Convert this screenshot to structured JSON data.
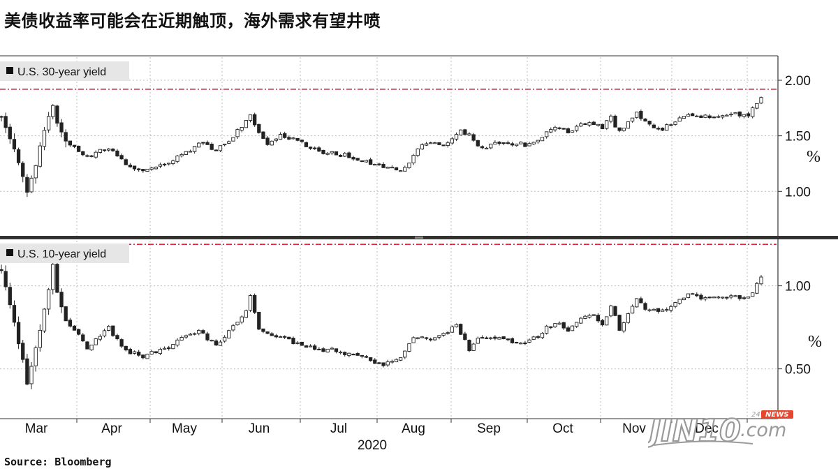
{
  "title": "美债收益率可能会在近期触顶，海外需求有望井喷",
  "source": "Source:  Bloomberg",
  "watermark": {
    "brand": "JIN10",
    "suffix": ".com",
    "badge_num": "24",
    "badge_text": "NEWS",
    "badge_color": "#e8452d"
  },
  "colors": {
    "candle": "#222222",
    "threshold": "#d6243f",
    "grid": "#bdbdbd",
    "label_bg": "#e6e6e6",
    "divider": "#333333"
  },
  "chart_data": [
    {
      "type": "candlestick",
      "label": "U.S. 30-year yield",
      "unit": "%",
      "yticks": [
        "2.00",
        "1.50",
        "1.00"
      ],
      "ytick_values": [
        2.0,
        1.5,
        1.0
      ],
      "ylim": [
        0.6,
        2.22
      ],
      "threshold": 1.92,
      "anchors": [
        [
          0,
          1.68
        ],
        [
          5,
          1.15
        ],
        [
          6,
          0.98
        ],
        [
          8,
          1.25
        ],
        [
          10,
          1.55
        ],
        [
          12,
          1.78
        ],
        [
          13,
          1.62
        ],
        [
          15,
          1.45
        ],
        [
          20,
          1.3
        ],
        [
          25,
          1.4
        ],
        [
          29,
          1.24
        ],
        [
          33,
          1.18
        ],
        [
          38,
          1.23
        ],
        [
          42,
          1.33
        ],
        [
          46,
          1.43
        ],
        [
          50,
          1.38
        ],
        [
          53,
          1.46
        ],
        [
          57,
          1.62
        ],
        [
          58,
          1.7
        ],
        [
          60,
          1.52
        ],
        [
          62,
          1.42
        ],
        [
          65,
          1.52
        ],
        [
          69,
          1.45
        ],
        [
          73,
          1.37
        ],
        [
          78,
          1.34
        ],
        [
          83,
          1.3
        ],
        [
          88,
          1.22
        ],
        [
          93,
          1.2
        ],
        [
          95,
          1.24
        ],
        [
          97,
          1.4
        ],
        [
          100,
          1.45
        ],
        [
          104,
          1.42
        ],
        [
          107,
          1.55
        ],
        [
          109,
          1.5
        ],
        [
          112,
          1.38
        ],
        [
          115,
          1.45
        ],
        [
          118,
          1.44
        ],
        [
          122,
          1.42
        ],
        [
          125,
          1.45
        ],
        [
          128,
          1.55
        ],
        [
          130,
          1.57
        ],
        [
          132,
          1.53
        ],
        [
          135,
          1.62
        ],
        [
          138,
          1.62
        ],
        [
          140,
          1.58
        ],
        [
          142,
          1.66
        ],
        [
          144,
          1.53
        ],
        [
          146,
          1.62
        ],
        [
          148,
          1.72
        ],
        [
          150,
          1.62
        ],
        [
          153,
          1.55
        ],
        [
          156,
          1.6
        ],
        [
          160,
          1.7
        ],
        [
          163,
          1.67
        ],
        [
          167,
          1.67
        ],
        [
          171,
          1.7
        ],
        [
          174,
          1.67
        ],
        [
          176,
          1.8
        ],
        [
          177,
          1.84
        ]
      ],
      "n_days": 178
    },
    {
      "type": "candlestick",
      "label": "U.S. 10-year yield",
      "unit": "%",
      "yticks": [
        "1.00",
        "0.50"
      ],
      "ytick_values": [
        1.0,
        0.5
      ],
      "ylim": [
        0.2,
        1.28
      ],
      "threshold": 1.25,
      "anchors": [
        [
          0,
          1.1
        ],
        [
          5,
          0.55
        ],
        [
          6,
          0.4
        ],
        [
          8,
          0.62
        ],
        [
          10,
          0.85
        ],
        [
          12,
          1.12
        ],
        [
          13,
          0.95
        ],
        [
          15,
          0.8
        ],
        [
          20,
          0.63
        ],
        [
          25,
          0.75
        ],
        [
          29,
          0.6
        ],
        [
          33,
          0.58
        ],
        [
          38,
          0.62
        ],
        [
          42,
          0.68
        ],
        [
          46,
          0.72
        ],
        [
          50,
          0.65
        ],
        [
          53,
          0.72
        ],
        [
          57,
          0.86
        ],
        [
          58,
          0.93
        ],
        [
          60,
          0.75
        ],
        [
          62,
          0.7
        ],
        [
          65,
          0.7
        ],
        [
          69,
          0.65
        ],
        [
          73,
          0.62
        ],
        [
          78,
          0.61
        ],
        [
          83,
          0.58
        ],
        [
          88,
          0.52
        ],
        [
          91,
          0.54
        ],
        [
          93,
          0.58
        ],
        [
          96,
          0.7
        ],
        [
          100,
          0.68
        ],
        [
          104,
          0.72
        ],
        [
          106,
          0.77
        ],
        [
          109,
          0.62
        ],
        [
          112,
          0.7
        ],
        [
          115,
          0.69
        ],
        [
          118,
          0.67
        ],
        [
          121,
          0.66
        ],
        [
          124,
          0.68
        ],
        [
          127,
          0.75
        ],
        [
          130,
          0.78
        ],
        [
          132,
          0.72
        ],
        [
          135,
          0.8
        ],
        [
          138,
          0.83
        ],
        [
          140,
          0.77
        ],
        [
          142,
          0.88
        ],
        [
          144,
          0.74
        ],
        [
          146,
          0.82
        ],
        [
          148,
          0.92
        ],
        [
          150,
          0.86
        ],
        [
          153,
          0.84
        ],
        [
          156,
          0.88
        ],
        [
          160,
          0.96
        ],
        [
          163,
          0.91
        ],
        [
          166,
          0.93
        ],
        [
          170,
          0.94
        ],
        [
          174,
          0.93
        ],
        [
          176,
          1.01
        ],
        [
          177,
          1.06
        ]
      ],
      "n_days": 178
    }
  ],
  "xaxis": {
    "months": [
      "Mar",
      "Apr",
      "May",
      "Jun",
      "Jul",
      "Aug",
      "Sep",
      "Oct",
      "Nov",
      "Dec"
    ],
    "year": "2020"
  }
}
